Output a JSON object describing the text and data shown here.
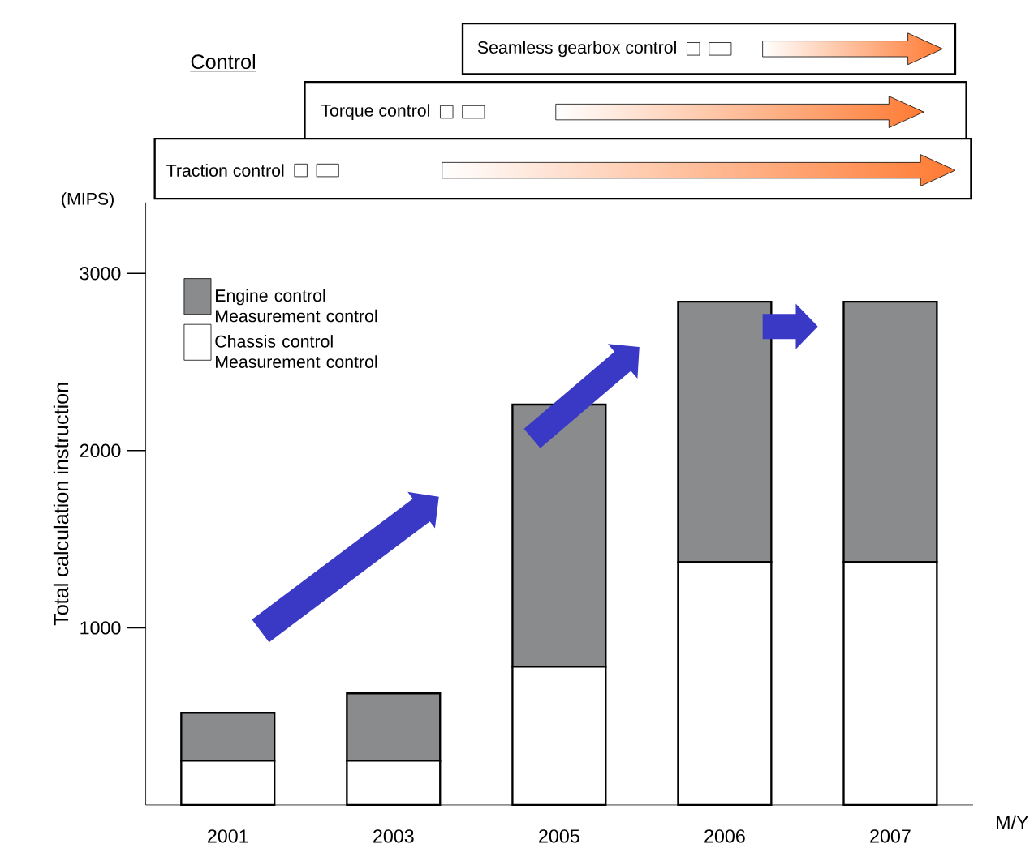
{
  "chart_data": {
    "type": "bar",
    "stacked": true,
    "ylabel": "Total calculation instruction",
    "xlabel": "M/Y",
    "categories": [
      "2001",
      "2003",
      "2005",
      "2006",
      "2007"
    ],
    "series": [
      {
        "name": "Chassis control Measurement control",
        "color": "#ffffff",
        "values": [
          250,
          250,
          780,
          1370,
          1370
        ]
      },
      {
        "name": "Engine control Measurement control",
        "color": "#8a8b8d",
        "values": [
          270,
          380,
          1480,
          1470,
          1470
        ]
      }
    ],
    "ylim": [
      0,
      3400
    ],
    "yticks": [
      1000,
      2000,
      3000
    ],
    "legend": "top left",
    "annotations": [
      "Control",
      "Seamless gearbox control",
      "Torque control",
      "Traction control",
      "(MIPS)"
    ]
  }
}
